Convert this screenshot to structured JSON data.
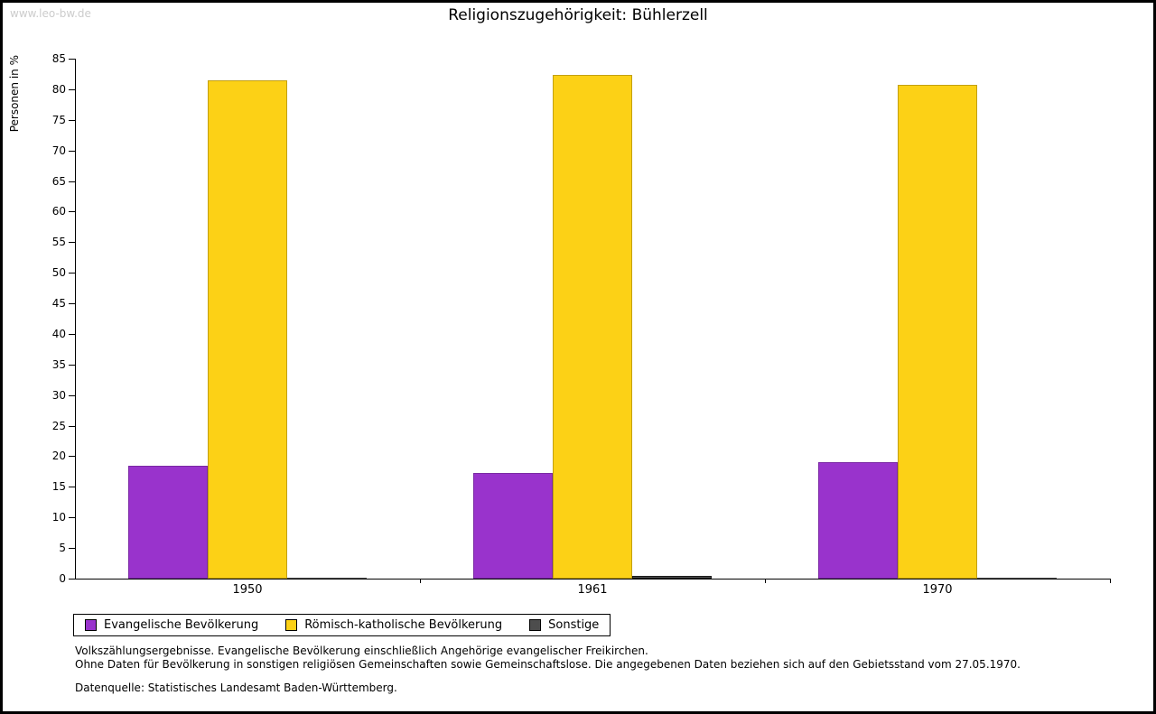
{
  "watermark": "www.leo-bw.de",
  "chart_data": {
    "type": "bar",
    "title": "Religionszugehörigkeit: Bühlerzell",
    "ylabel": "Personen in %",
    "xlabel": "",
    "ylim": [
      0,
      85
    ],
    "ytick_step": 5,
    "grid": false,
    "legend_position": "bottom-left",
    "categories": [
      "1950",
      "1961",
      "1970"
    ],
    "series": [
      {
        "name": "Evangelische Bevölkerung",
        "color": "#9933CC",
        "border_color": "#7A29A3",
        "values": [
          18.4,
          17.2,
          19.0
        ]
      },
      {
        "name": "Römisch-katholische Bevölkerung",
        "color": "#FCD116",
        "border_color": "#C3A011",
        "values": [
          81.5,
          82.3,
          80.8
        ]
      },
      {
        "name": "Sonstige",
        "color": "#4D4D4D",
        "border_color": "#1A1A1A",
        "values": [
          0.1,
          0.5,
          0.2
        ]
      }
    ]
  },
  "footnotes": {
    "line1": "Volkszählungsergebnisse. Evangelische Bevölkerung einschließlich Angehörige evangelischer Freikirchen.",
    "line2": "Ohne Daten für Bevölkerung in sonstigen religiösen Gemeinschaften sowie Gemeinschaftslose. Die angegebenen Daten beziehen sich auf den Gebietsstand vom 27.05.1970.",
    "source": "Datenquelle: Statistisches Landesamt Baden-Württemberg."
  }
}
